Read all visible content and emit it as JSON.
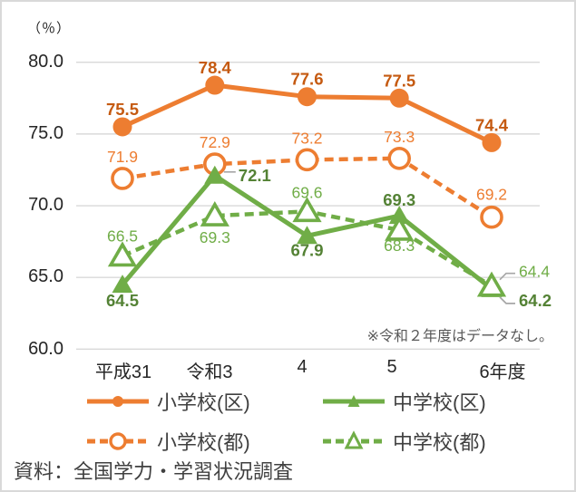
{
  "chart_data": {
    "type": "line",
    "title": "",
    "unit_label": "（％）",
    "categories": [
      "平成31",
      "令和3",
      "4",
      "5",
      "6年度"
    ],
    "ytick_labels": [
      "80.0",
      "75.0",
      "70.0",
      "65.0",
      "60.0"
    ],
    "yticks": [
      80,
      75,
      70,
      65,
      60
    ],
    "ylim": [
      60.0,
      80.0
    ],
    "grid": true,
    "legend_position": "bottom",
    "annotation": "※令和２年度はデータなし。",
    "series": [
      {
        "name": "小学校(区)",
        "values": [
          75.5,
          78.4,
          77.6,
          77.5,
          74.4
        ],
        "color": "#ED7D31",
        "label_color": "#C55A11",
        "line": "solid",
        "marker": "circle-filled",
        "labels_bold": true,
        "label_pos": [
          "above:13",
          "above:13",
          "above:13",
          "above:13",
          "above:13"
        ]
      },
      {
        "name": "小学校(都)",
        "values": [
          71.9,
          72.9,
          73.2,
          73.3,
          69.2
        ],
        "color": "#ED7D31",
        "label_color": "#ED7D31",
        "line": "dashed",
        "marker": "circle-open",
        "labels_bold": false,
        "label_pos": [
          "above:18",
          "above:18",
          "above:18",
          "above:18",
          "above:19"
        ]
      },
      {
        "name": "中学校(区)",
        "values": [
          64.5,
          72.1,
          67.9,
          69.3,
          64.2
        ],
        "color": "#70AD47",
        "label_color": "#548235",
        "line": "solid",
        "marker": "triangle-filled",
        "labels_bold": true,
        "label_pos": [
          "below:24",
          "right:6",
          "below:22",
          "above:11",
          "right-down:19"
        ]
      },
      {
        "name": "中学校(都)",
        "values": [
          66.5,
          69.3,
          69.6,
          68.3,
          64.4
        ],
        "color": "#70AD47",
        "label_color": "#70AD47",
        "line": "dashed",
        "marker": "triangle-open",
        "labels_bold": false,
        "label_pos": [
          "above:16",
          "below:30",
          "above:15",
          "below:23",
          "right-up:10"
        ]
      }
    ]
  },
  "footer": {
    "text": "資料：全国学力・学習状況調査"
  },
  "style": {
    "grid_color": "#D9D9D9",
    "leader_color": "#A6A6A6",
    "border_color": "#D9D9D9"
  }
}
